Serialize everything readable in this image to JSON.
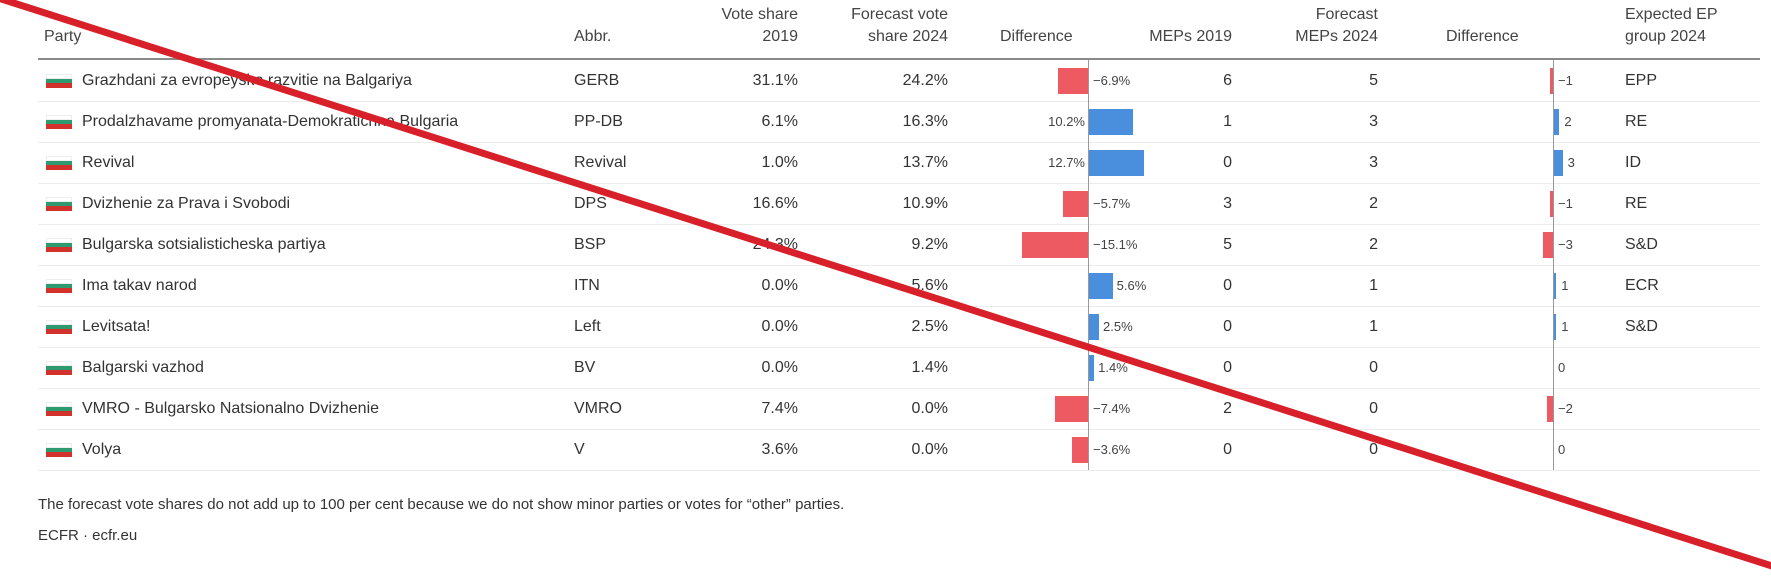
{
  "table": {
    "headers": {
      "party": "Party",
      "abbr": "Abbr.",
      "vote2019": [
        "Vote share",
        "2019"
      ],
      "forecast2024": [
        "Forecast vote",
        "share 2024"
      ],
      "diff_vote": "Difference",
      "meps2019": "MEPs 2019",
      "forecast_meps": [
        "Forecast",
        "MEPs 2024"
      ],
      "diff_meps": "Difference",
      "ep_group": [
        "Expected EP",
        "group 2024"
      ]
    },
    "rows": [
      {
        "party": "Grazhdani za evropeysko razvitie na Balgariya",
        "abbr": "GERB",
        "vote2019": "31.1%",
        "forecast2024": "24.2%",
        "diff_vote": "−6.9%",
        "meps2019": "6",
        "forecast_meps": "5",
        "diff_meps": "−1",
        "ep_group": "EPP"
      },
      {
        "party": "Prodalzhavame promyanata-Demokratichna Bulgaria",
        "abbr": "PP-DB",
        "vote2019": "6.1%",
        "forecast2024": "16.3%",
        "diff_vote": "10.2%",
        "meps2019": "1",
        "forecast_meps": "3",
        "diff_meps": "2",
        "ep_group": "RE"
      },
      {
        "party": "Revival",
        "abbr": "Revival",
        "vote2019": "1.0%",
        "forecast2024": "13.7%",
        "diff_vote": "12.7%",
        "meps2019": "0",
        "forecast_meps": "3",
        "diff_meps": "3",
        "ep_group": "ID"
      },
      {
        "party": "Dvizhenie za Prava i Svobodi",
        "abbr": "DPS",
        "vote2019": "16.6%",
        "forecast2024": "10.9%",
        "diff_vote": "−5.7%",
        "meps2019": "3",
        "forecast_meps": "2",
        "diff_meps": "−1",
        "ep_group": "RE"
      },
      {
        "party": "Bulgarska sotsialisticheska partiya",
        "abbr": "BSP",
        "vote2019": "24.3%",
        "forecast2024": "9.2%",
        "diff_vote": "−15.1%",
        "meps2019": "5",
        "forecast_meps": "2",
        "diff_meps": "−3",
        "ep_group": "S&D"
      },
      {
        "party": "Ima takav narod",
        "abbr": "ITN",
        "vote2019": "0.0%",
        "forecast2024": "5.6%",
        "diff_vote": "5.6%",
        "meps2019": "0",
        "forecast_meps": "1",
        "diff_meps": "1",
        "ep_group": "ECR"
      },
      {
        "party": "Levitsata!",
        "abbr": "Left",
        "vote2019": "0.0%",
        "forecast2024": "2.5%",
        "diff_vote": "2.5%",
        "meps2019": "0",
        "forecast_meps": "1",
        "diff_meps": "1",
        "ep_group": "S&D"
      },
      {
        "party": "Balgarski vazhod",
        "abbr": "BV",
        "vote2019": "0.0%",
        "forecast2024": "1.4%",
        "diff_vote": "1.4%",
        "meps2019": "0",
        "forecast_meps": "0",
        "diff_meps": "0",
        "ep_group": ""
      },
      {
        "party": "VMRO - Bulgarsko Natsionalno Dvizhenie",
        "abbr": "VMRO",
        "vote2019": "7.4%",
        "forecast2024": "0.0%",
        "diff_vote": "−7.4%",
        "meps2019": "2",
        "forecast_meps": "0",
        "diff_meps": "−2",
        "ep_group": ""
      },
      {
        "party": "Volya",
        "abbr": "V",
        "vote2019": "3.6%",
        "forecast2024": "0.0%",
        "diff_vote": "−3.6%",
        "meps2019": "0",
        "forecast_meps": "0",
        "diff_meps": "0",
        "ep_group": ""
      }
    ]
  },
  "footer": {
    "note": "The forecast vote shares do not add up to 100 per cent because we do not show minor parties or votes for “other” parties.",
    "source": "ECFR · ecfr.eu"
  },
  "colors": {
    "positive": "#4a8fde",
    "negative": "#ee5a62",
    "flag_white": "#ffffff",
    "flag_green": "#2d9b6f",
    "flag_red": "#d3312b",
    "overlay_line": "#d8202a"
  },
  "chart_data": {
    "type": "table",
    "title": "",
    "columns": [
      "Party",
      "Abbr.",
      "Vote share 2019",
      "Forecast vote share 2024",
      "Difference",
      "MEPs 2019",
      "Forecast MEPs 2024",
      "Difference",
      "Expected EP group 2024"
    ],
    "categories": [
      "GERB",
      "PP-DB",
      "Revival",
      "DPS",
      "BSP",
      "ITN",
      "Left",
      "BV",
      "VMRO",
      "V"
    ],
    "series": [
      {
        "name": "Vote share 2019",
        "values": [
          31.1,
          6.1,
          1.0,
          16.6,
          24.3,
          0.0,
          0.0,
          0.0,
          7.4,
          3.6
        ]
      },
      {
        "name": "Forecast vote share 2024",
        "values": [
          24.2,
          16.3,
          13.7,
          10.9,
          9.2,
          5.6,
          2.5,
          1.4,
          0.0,
          0.0
        ]
      },
      {
        "name": "Vote share difference",
        "values": [
          -6.9,
          10.2,
          12.7,
          -5.7,
          -15.1,
          5.6,
          2.5,
          1.4,
          -7.4,
          -3.6
        ]
      },
      {
        "name": "MEPs 2019",
        "values": [
          6,
          1,
          0,
          3,
          5,
          0,
          0,
          0,
          2,
          0
        ]
      },
      {
        "name": "Forecast MEPs 2024",
        "values": [
          5,
          3,
          3,
          2,
          2,
          1,
          1,
          0,
          0,
          0
        ]
      },
      {
        "name": "MEP difference",
        "values": [
          -1,
          2,
          3,
          -1,
          -3,
          1,
          1,
          0,
          -2,
          0
        ]
      }
    ]
  }
}
